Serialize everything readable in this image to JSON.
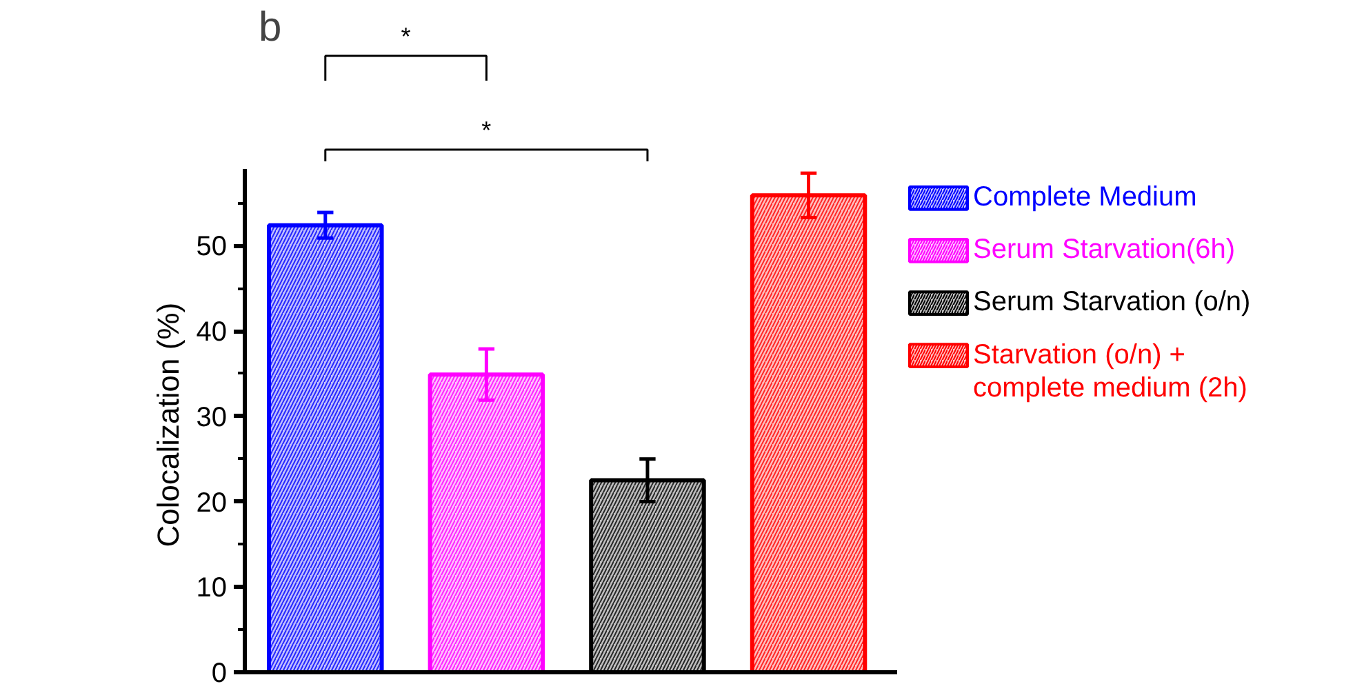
{
  "chart_data": {
    "type": "bar",
    "categories": [
      null,
      null,
      null,
      null
    ],
    "ylabel": "Colocalization  (%)",
    "ylim": [
      0,
      59
    ],
    "yticks": [
      0,
      10,
      20,
      30,
      40,
      50
    ],
    "tick_labels": "y",
    "grid": false,
    "legend": "right",
    "series": [
      {
        "name": "Complete Medium",
        "color": "#0000ff",
        "values": [
          52.4,
          null,
          null,
          null
        ],
        "errors": [
          1.5,
          null,
          null,
          null
        ]
      },
      {
        "name": "Serum Starvation(6h)",
        "color": "#ff00ff",
        "values": [
          null,
          34.9,
          null,
          null
        ],
        "errors": [
          null,
          3.0,
          null,
          null
        ]
      },
      {
        "name": "Serum Starvation (o/n)",
        "color": "#000000",
        "values": [
          null,
          null,
          22.5,
          null
        ],
        "errors": [
          null,
          null,
          2.5,
          null
        ]
      },
      {
        "name": "Starvation (o/n) + complete medium (2h)",
        "color": "#ff0000",
        "values": [
          null,
          null,
          null,
          55.9
        ],
        "errors": [
          null,
          null,
          null,
          2.6
        ]
      }
    ],
    "annotations": [
      "b",
      "*",
      "*"
    ]
  }
}
